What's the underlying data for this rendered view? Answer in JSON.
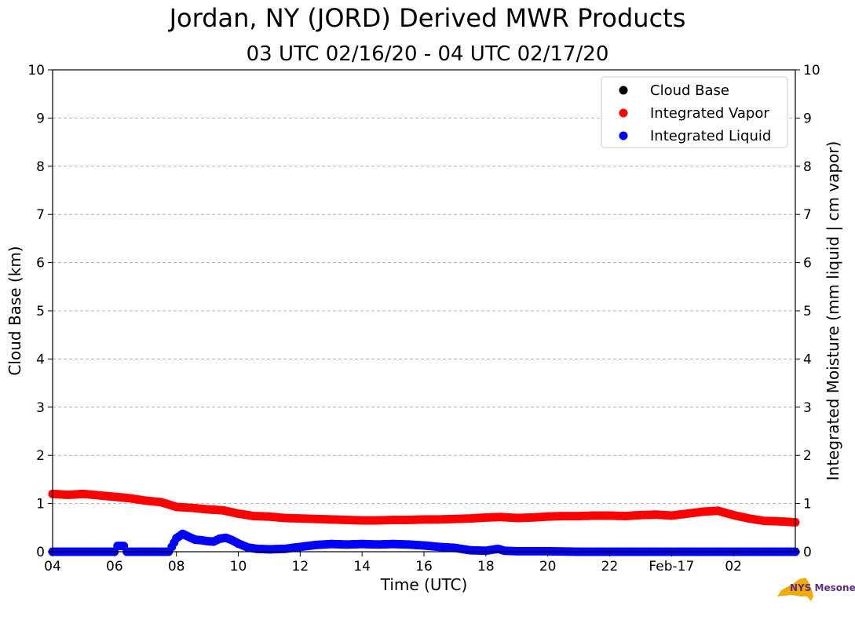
{
  "title": "Jordan, NY (JORD) Derived MWR Products",
  "subtitle": "03 UTC 02/16/20 - 04 UTC 02/17/20",
  "logo_text": "NYS Mesonet",
  "colors": {
    "cloud_base": "#000000",
    "vapor": "#ff0000",
    "liquid": "#0000ff",
    "grid": "#b0b0b0"
  },
  "chart_data": {
    "type": "scatter",
    "title": "Jordan, NY (JORD) Derived MWR Products",
    "subtitle": "03 UTC 02/16/20 - 04 UTC 02/17/20",
    "xlabel": "Time (UTC)",
    "ylabel": "Cloud Base (km)",
    "y2label": "Integrated Moisture (mm liquid | cm vapor)",
    "x_unit": "hours after 2020-02-16 04:00 UTC",
    "xlim": [
      0,
      24
    ],
    "ylim": [
      0,
      10
    ],
    "y2lim": [
      0,
      10
    ],
    "x_ticks": [
      {
        "x": 0,
        "label": "04"
      },
      {
        "x": 2,
        "label": "06"
      },
      {
        "x": 4,
        "label": "08"
      },
      {
        "x": 6,
        "label": "10"
      },
      {
        "x": 8,
        "label": "12"
      },
      {
        "x": 10,
        "label": "14"
      },
      {
        "x": 12,
        "label": "16"
      },
      {
        "x": 14,
        "label": "18"
      },
      {
        "x": 16,
        "label": "20"
      },
      {
        "x": 18,
        "label": "22"
      },
      {
        "x": 20,
        "label": "Feb-17"
      },
      {
        "x": 22,
        "label": "02"
      }
    ],
    "y_ticks": [
      0,
      1,
      2,
      3,
      4,
      5,
      6,
      7,
      8,
      9,
      10
    ],
    "grid": "horizontal dashed",
    "legend_position": "top-right",
    "series": [
      {
        "name": "Cloud Base",
        "color": "#000000",
        "points": []
      },
      {
        "name": "Integrated Vapor",
        "color": "#ff0000",
        "points": [
          [
            0,
            1.2
          ],
          [
            0.5,
            1.18
          ],
          [
            1,
            1.2
          ],
          [
            1.5,
            1.17
          ],
          [
            2,
            1.14
          ],
          [
            2.5,
            1.11
          ],
          [
            3,
            1.06
          ],
          [
            3.5,
            1.03
          ],
          [
            4,
            0.93
          ],
          [
            4.5,
            0.91
          ],
          [
            5,
            0.88
          ],
          [
            5.5,
            0.86
          ],
          [
            6,
            0.79
          ],
          [
            6.5,
            0.74
          ],
          [
            7,
            0.73
          ],
          [
            7.5,
            0.7
          ],
          [
            8,
            0.69
          ],
          [
            8.5,
            0.68
          ],
          [
            9,
            0.67
          ],
          [
            9.5,
            0.66
          ],
          [
            10,
            0.65
          ],
          [
            10.5,
            0.65
          ],
          [
            11,
            0.66
          ],
          [
            11.5,
            0.66
          ],
          [
            12,
            0.67
          ],
          [
            12.5,
            0.67
          ],
          [
            13,
            0.68
          ],
          [
            13.5,
            0.69
          ],
          [
            14,
            0.71
          ],
          [
            14.5,
            0.72
          ],
          [
            15,
            0.7
          ],
          [
            15.5,
            0.71
          ],
          [
            16,
            0.73
          ],
          [
            16.5,
            0.74
          ],
          [
            17,
            0.74
          ],
          [
            17.5,
            0.75
          ],
          [
            18,
            0.75
          ],
          [
            18.5,
            0.74
          ],
          [
            19,
            0.76
          ],
          [
            19.5,
            0.77
          ],
          [
            20,
            0.75
          ],
          [
            20.5,
            0.79
          ],
          [
            21,
            0.83
          ],
          [
            21.5,
            0.85
          ],
          [
            22,
            0.76
          ],
          [
            22.5,
            0.69
          ],
          [
            23,
            0.64
          ],
          [
            23.5,
            0.63
          ],
          [
            24,
            0.61
          ]
        ]
      },
      {
        "name": "Integrated Liquid",
        "color": "#0000ff",
        "points": [
          [
            0,
            0
          ],
          [
            0.5,
            0
          ],
          [
            1,
            0
          ],
          [
            1.5,
            0
          ],
          [
            2,
            0
          ],
          [
            2.1,
            0.12
          ],
          [
            2.3,
            0.12
          ],
          [
            2.4,
            0
          ],
          [
            3,
            0
          ],
          [
            3.5,
            0
          ],
          [
            3.75,
            0
          ],
          [
            3.85,
            0.1
          ],
          [
            4,
            0.28
          ],
          [
            4.2,
            0.37
          ],
          [
            4.4,
            0.31
          ],
          [
            4.6,
            0.25
          ],
          [
            4.8,
            0.24
          ],
          [
            5,
            0.22
          ],
          [
            5.2,
            0.21
          ],
          [
            5.4,
            0.27
          ],
          [
            5.6,
            0.29
          ],
          [
            5.8,
            0.24
          ],
          [
            6,
            0.17
          ],
          [
            6.3,
            0.09
          ],
          [
            6.6,
            0.06
          ],
          [
            7,
            0.05
          ],
          [
            7.5,
            0.06
          ],
          [
            8,
            0.1
          ],
          [
            8.5,
            0.14
          ],
          [
            9,
            0.16
          ],
          [
            9.5,
            0.15
          ],
          [
            10,
            0.16
          ],
          [
            10.5,
            0.15
          ],
          [
            11,
            0.16
          ],
          [
            11.5,
            0.15
          ],
          [
            12,
            0.13
          ],
          [
            12.5,
            0.1
          ],
          [
            13,
            0.08
          ],
          [
            13.5,
            0.03
          ],
          [
            14,
            0.02
          ],
          [
            14.4,
            0.06
          ],
          [
            14.6,
            0.02
          ],
          [
            15,
            0.01
          ],
          [
            16,
            0.01
          ],
          [
            17,
            0
          ],
          [
            18,
            0
          ],
          [
            19,
            0
          ],
          [
            20,
            0
          ],
          [
            21,
            0
          ],
          [
            22,
            0
          ],
          [
            23,
            0
          ],
          [
            24,
            0
          ]
        ]
      }
    ]
  }
}
